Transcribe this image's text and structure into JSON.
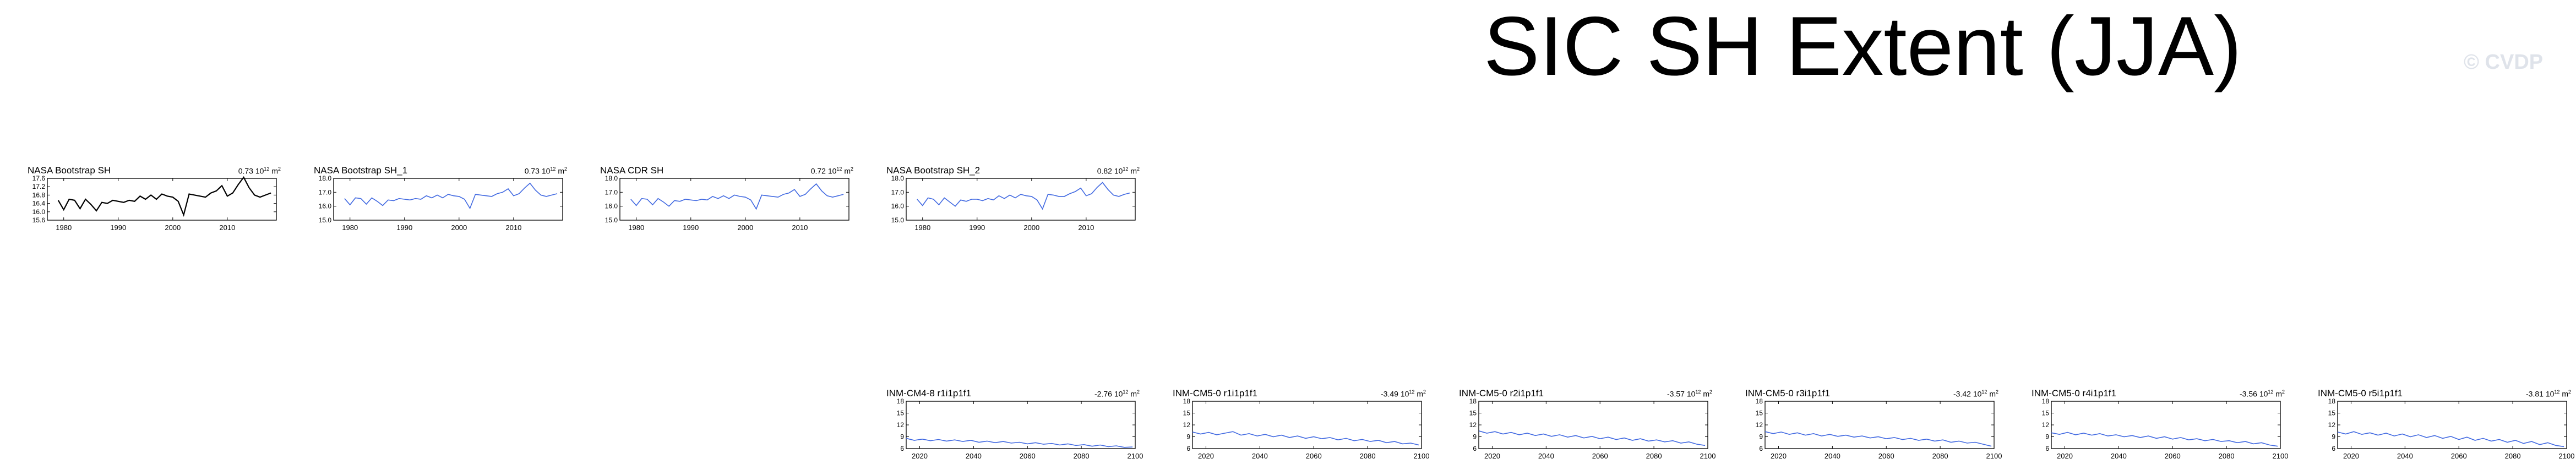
{
  "page": {
    "title": "SIC SH Extent (JJA)",
    "watermark": "© CVDP"
  },
  "chart_data": [
    {
      "type": "line",
      "title": "NASA Bootstrap SH",
      "trend_value": "0.73",
      "trend_unit": "10",
      "trend_exp": "12",
      "trend_tail": "m",
      "trend_unit_exp": "2",
      "color": "#000000",
      "x_ticks": [
        "1980",
        "1990",
        "2000",
        "2010"
      ],
      "xlim": [
        1977,
        2019
      ],
      "y_ticks": [
        "15.6",
        "16.0",
        "16.4",
        "16.8",
        "17.2",
        "17.6"
      ],
      "ylim": [
        15.6,
        17.6
      ],
      "x": [
        1979,
        1980,
        1981,
        1982,
        1983,
        1984,
        1985,
        1986,
        1987,
        1988,
        1989,
        1990,
        1991,
        1992,
        1993,
        1994,
        1995,
        1996,
        1997,
        1998,
        1999,
        2000,
        2001,
        2002,
        2003,
        2004,
        2005,
        2006,
        2007,
        2008,
        2009,
        2010,
        2011,
        2012,
        2013,
        2014,
        2015,
        2016,
        2017,
        2018
      ],
      "values": [
        16.55,
        16.1,
        16.6,
        16.55,
        16.15,
        16.6,
        16.35,
        16.05,
        16.45,
        16.4,
        16.55,
        16.5,
        16.45,
        16.55,
        16.5,
        16.75,
        16.6,
        16.8,
        16.6,
        16.85,
        16.75,
        16.7,
        16.5,
        15.85,
        16.85,
        16.8,
        16.75,
        16.7,
        16.9,
        17.0,
        17.25,
        16.75,
        16.9,
        17.3,
        17.65,
        17.15,
        16.8,
        16.7,
        16.8,
        16.9
      ]
    },
    {
      "type": "line",
      "title": "NASA Bootstrap SH_1",
      "trend_value": "0.73",
      "trend_unit": "10",
      "trend_exp": "12",
      "trend_tail": "m",
      "trend_unit_exp": "2",
      "color": "#4169e1",
      "x_ticks": [
        "1980",
        "1990",
        "2000",
        "2010"
      ],
      "xlim": [
        1977,
        2019
      ],
      "y_ticks": [
        "15.0",
        "16.0",
        "17.0",
        "18.0"
      ],
      "ylim": [
        15.0,
        18.0
      ],
      "x": [
        1979,
        1980,
        1981,
        1982,
        1983,
        1984,
        1985,
        1986,
        1987,
        1988,
        1989,
        1990,
        1991,
        1992,
        1993,
        1994,
        1995,
        1996,
        1997,
        1998,
        1999,
        2000,
        2001,
        2002,
        2003,
        2004,
        2005,
        2006,
        2007,
        2008,
        2009,
        2010,
        2011,
        2012,
        2013,
        2014,
        2015,
        2016,
        2017,
        2018
      ],
      "values": [
        16.55,
        16.1,
        16.6,
        16.55,
        16.15,
        16.6,
        16.35,
        16.05,
        16.45,
        16.4,
        16.55,
        16.5,
        16.45,
        16.55,
        16.5,
        16.75,
        16.6,
        16.8,
        16.6,
        16.85,
        16.75,
        16.7,
        16.5,
        15.85,
        16.85,
        16.8,
        16.75,
        16.7,
        16.9,
        17.0,
        17.25,
        16.75,
        16.9,
        17.3,
        17.65,
        17.15,
        16.8,
        16.7,
        16.8,
        16.9
      ]
    },
    {
      "type": "line",
      "title": "NASA CDR SH",
      "trend_value": "0.72",
      "trend_unit": "10",
      "trend_exp": "12",
      "trend_tail": "m",
      "trend_unit_exp": "2",
      "color": "#4169e1",
      "x_ticks": [
        "1980",
        "1990",
        "2000",
        "2010"
      ],
      "xlim": [
        1977,
        2019
      ],
      "y_ticks": [
        "15.0",
        "16.0",
        "17.0",
        "18.0"
      ],
      "ylim": [
        15.0,
        18.0
      ],
      "x": [
        1979,
        1980,
        1981,
        1982,
        1983,
        1984,
        1985,
        1986,
        1987,
        1988,
        1989,
        1990,
        1991,
        1992,
        1993,
        1994,
        1995,
        1996,
        1997,
        1998,
        1999,
        2000,
        2001,
        2002,
        2003,
        2004,
        2005,
        2006,
        2007,
        2008,
        2009,
        2010,
        2011,
        2012,
        2013,
        2014,
        2015,
        2016,
        2017,
        2018
      ],
      "values": [
        16.5,
        16.05,
        16.55,
        16.5,
        16.1,
        16.55,
        16.3,
        16.0,
        16.4,
        16.35,
        16.5,
        16.45,
        16.4,
        16.5,
        16.45,
        16.7,
        16.55,
        16.75,
        16.55,
        16.8,
        16.7,
        16.65,
        16.45,
        15.8,
        16.8,
        16.75,
        16.7,
        16.65,
        16.85,
        16.95,
        17.2,
        16.7,
        16.85,
        17.25,
        17.6,
        17.1,
        16.75,
        16.65,
        16.75,
        16.85
      ]
    },
    {
      "type": "line",
      "title": "NASA Bootstrap SH_2",
      "trend_value": "0.82",
      "trend_unit": "10",
      "trend_exp": "12",
      "trend_tail": "m",
      "trend_unit_exp": "2",
      "color": "#4169e1",
      "x_ticks": [
        "1980",
        "1990",
        "2000",
        "2010"
      ],
      "xlim": [
        1977,
        2019
      ],
      "y_ticks": [
        "15.0",
        "16.0",
        "17.0",
        "18.0"
      ],
      "ylim": [
        15.0,
        18.0
      ],
      "x": [
        1979,
        1980,
        1981,
        1982,
        1983,
        1984,
        1985,
        1986,
        1987,
        1988,
        1989,
        1990,
        1991,
        1992,
        1993,
        1994,
        1995,
        1996,
        1997,
        1998,
        1999,
        2000,
        2001,
        2002,
        2003,
        2004,
        2005,
        2006,
        2007,
        2008,
        2009,
        2010,
        2011,
        2012,
        2013,
        2014,
        2015,
        2016,
        2017,
        2018
      ],
      "values": [
        16.5,
        16.05,
        16.6,
        16.5,
        16.1,
        16.6,
        16.3,
        16.0,
        16.45,
        16.35,
        16.5,
        16.5,
        16.4,
        16.55,
        16.45,
        16.75,
        16.55,
        16.8,
        16.6,
        16.85,
        16.75,
        16.7,
        16.45,
        15.8,
        16.85,
        16.8,
        16.7,
        16.7,
        16.9,
        17.05,
        17.3,
        16.75,
        16.9,
        17.35,
        17.7,
        17.2,
        16.8,
        16.7,
        16.85,
        16.95
      ]
    },
    {
      "type": "line",
      "title": "INM-CM4-8 r1i1p1f1",
      "trend_value": "-2.76",
      "trend_unit": "10",
      "trend_exp": "12",
      "trend_tail": "m",
      "trend_unit_exp": "2",
      "color": "#4169e1",
      "x_ticks": [
        "2020",
        "2040",
        "2060",
        "2080",
        "2100"
      ],
      "xlim": [
        2015,
        2100
      ],
      "y_ticks": [
        "6",
        "9",
        "12",
        "15",
        "18"
      ],
      "ylim": [
        6,
        18
      ],
      "x": [
        2015,
        2018,
        2021,
        2024,
        2027,
        2030,
        2033,
        2036,
        2039,
        2042,
        2045,
        2048,
        2051,
        2054,
        2057,
        2060,
        2063,
        2066,
        2069,
        2072,
        2075,
        2078,
        2081,
        2084,
        2087,
        2090,
        2093,
        2096,
        2099
      ],
      "values": [
        8.6,
        8.1,
        8.4,
        8.0,
        8.3,
        7.9,
        8.2,
        7.8,
        8.1,
        7.6,
        7.9,
        7.5,
        7.8,
        7.4,
        7.6,
        7.2,
        7.5,
        7.1,
        7.3,
        6.9,
        7.2,
        6.8,
        7.0,
        6.6,
        6.9,
        6.5,
        6.7,
        6.3,
        6.4
      ]
    },
    {
      "type": "line",
      "title": "INM-CM5-0 r1i1p1f1",
      "trend_value": "-3.49",
      "trend_unit": "10",
      "trend_exp": "12",
      "trend_tail": "m",
      "trend_unit_exp": "2",
      "color": "#4169e1",
      "x_ticks": [
        "2020",
        "2040",
        "2060",
        "2080",
        "2100"
      ],
      "xlim": [
        2015,
        2100
      ],
      "y_ticks": [
        "6",
        "9",
        "12",
        "15",
        "18"
      ],
      "ylim": [
        6,
        18
      ],
      "x": [
        2015,
        2018,
        2021,
        2024,
        2027,
        2030,
        2033,
        2036,
        2039,
        2042,
        2045,
        2048,
        2051,
        2054,
        2057,
        2060,
        2063,
        2066,
        2069,
        2072,
        2075,
        2078,
        2081,
        2084,
        2087,
        2090,
        2093,
        2096,
        2099
      ],
      "values": [
        10.2,
        9.7,
        10.1,
        9.5,
        9.9,
        10.3,
        9.4,
        9.8,
        9.2,
        9.6,
        9.0,
        9.4,
        8.8,
        9.2,
        8.6,
        9.0,
        8.5,
        8.8,
        8.2,
        8.6,
        8.0,
        8.3,
        7.8,
        8.1,
        7.5,
        7.8,
        7.2,
        7.4,
        6.9
      ]
    },
    {
      "type": "line",
      "title": "INM-CM5-0 r2i1p1f1",
      "trend_value": "-3.57",
      "trend_unit": "10",
      "trend_exp": "12",
      "trend_tail": "m",
      "trend_unit_exp": "2",
      "color": "#4169e1",
      "x_ticks": [
        "2020",
        "2040",
        "2060",
        "2080",
        "2100"
      ],
      "xlim": [
        2015,
        2100
      ],
      "y_ticks": [
        "6",
        "9",
        "12",
        "15",
        "18"
      ],
      "ylim": [
        6,
        18
      ],
      "x": [
        2015,
        2018,
        2021,
        2024,
        2027,
        2030,
        2033,
        2036,
        2039,
        2042,
        2045,
        2048,
        2051,
        2054,
        2057,
        2060,
        2063,
        2066,
        2069,
        2072,
        2075,
        2078,
        2081,
        2084,
        2087,
        2090,
        2093,
        2096,
        2099
      ],
      "values": [
        10.5,
        9.9,
        10.3,
        9.7,
        10.1,
        9.5,
        9.9,
        9.3,
        9.7,
        9.1,
        9.5,
        8.9,
        9.3,
        8.7,
        9.1,
        8.5,
        8.9,
        8.3,
        8.7,
        8.1,
        8.5,
        7.9,
        8.2,
        7.7,
        8.0,
        7.4,
        7.7,
        7.1,
        6.8
      ]
    },
    {
      "type": "line",
      "title": "INM-CM5-0 r3i1p1f1",
      "trend_value": "-3.42",
      "trend_unit": "10",
      "trend_exp": "12",
      "trend_tail": "m",
      "trend_unit_exp": "2",
      "color": "#4169e1",
      "x_ticks": [
        "2020",
        "2040",
        "2060",
        "2080",
        "2100"
      ],
      "xlim": [
        2015,
        2100
      ],
      "y_ticks": [
        "6",
        "9",
        "12",
        "15",
        "18"
      ],
      "ylim": [
        6,
        18
      ],
      "x": [
        2015,
        2018,
        2021,
        2024,
        2027,
        2030,
        2033,
        2036,
        2039,
        2042,
        2045,
        2048,
        2051,
        2054,
        2057,
        2060,
        2063,
        2066,
        2069,
        2072,
        2075,
        2078,
        2081,
        2084,
        2087,
        2090,
        2093,
        2096,
        2099
      ],
      "values": [
        10.3,
        9.8,
        10.2,
        9.6,
        10.0,
        9.4,
        9.8,
        9.2,
        9.6,
        9.1,
        9.4,
        8.9,
        9.2,
        8.7,
        9.0,
        8.5,
        8.8,
        8.3,
        8.6,
        8.1,
        8.4,
        7.9,
        8.2,
        7.6,
        7.9,
        7.4,
        7.6,
        7.1,
        6.6
      ]
    },
    {
      "type": "line",
      "title": "INM-CM5-0 r4i1p1f1",
      "trend_value": "-3.56",
      "trend_unit": "10",
      "trend_exp": "12",
      "trend_tail": "m",
      "trend_unit_exp": "2",
      "color": "#4169e1",
      "x_ticks": [
        "2020",
        "2040",
        "2060",
        "2080",
        "2100"
      ],
      "xlim": [
        2015,
        2100
      ],
      "y_ticks": [
        "6",
        "9",
        "12",
        "15",
        "18"
      ],
      "ylim": [
        6,
        18
      ],
      "x": [
        2015,
        2018,
        2021,
        2024,
        2027,
        2030,
        2033,
        2036,
        2039,
        2042,
        2045,
        2048,
        2051,
        2054,
        2057,
        2060,
        2063,
        2066,
        2069,
        2072,
        2075,
        2078,
        2081,
        2084,
        2087,
        2090,
        2093,
        2096,
        2099
      ],
      "values": [
        10.0,
        9.6,
        10.1,
        9.5,
        9.9,
        9.4,
        9.8,
        9.2,
        9.5,
        9.0,
        9.3,
        8.8,
        9.2,
        8.6,
        9.0,
        8.4,
        8.8,
        8.2,
        8.5,
        8.0,
        8.3,
        7.8,
        8.0,
        7.5,
        7.8,
        7.2,
        7.5,
        6.9,
        6.6
      ]
    },
    {
      "type": "line",
      "title": "INM-CM5-0 r5i1p1f1",
      "trend_value": "-3.81",
      "trend_unit": "10",
      "trend_exp": "12",
      "trend_tail": "m",
      "trend_unit_exp": "2",
      "color": "#4169e1",
      "x_ticks": [
        "2020",
        "2040",
        "2060",
        "2080",
        "2100"
      ],
      "xlim": [
        2015,
        2100
      ],
      "y_ticks": [
        "6",
        "9",
        "12",
        "15",
        "18"
      ],
      "ylim": [
        6,
        18
      ],
      "x": [
        2015,
        2018,
        2021,
        2024,
        2027,
        2030,
        2033,
        2036,
        2039,
        2042,
        2045,
        2048,
        2051,
        2054,
        2057,
        2060,
        2063,
        2066,
        2069,
        2072,
        2075,
        2078,
        2081,
        2084,
        2087,
        2090,
        2093,
        2096,
        2099
      ],
      "values": [
        10.2,
        9.7,
        10.3,
        9.6,
        10.0,
        9.4,
        9.9,
        9.2,
        9.7,
        9.0,
        9.5,
        8.8,
        9.3,
        8.6,
        9.1,
        8.3,
        8.9,
        8.1,
        8.6,
        7.9,
        8.3,
        7.6,
        8.1,
        7.3,
        7.8,
        7.0,
        7.5,
        6.8,
        6.5
      ]
    }
  ]
}
